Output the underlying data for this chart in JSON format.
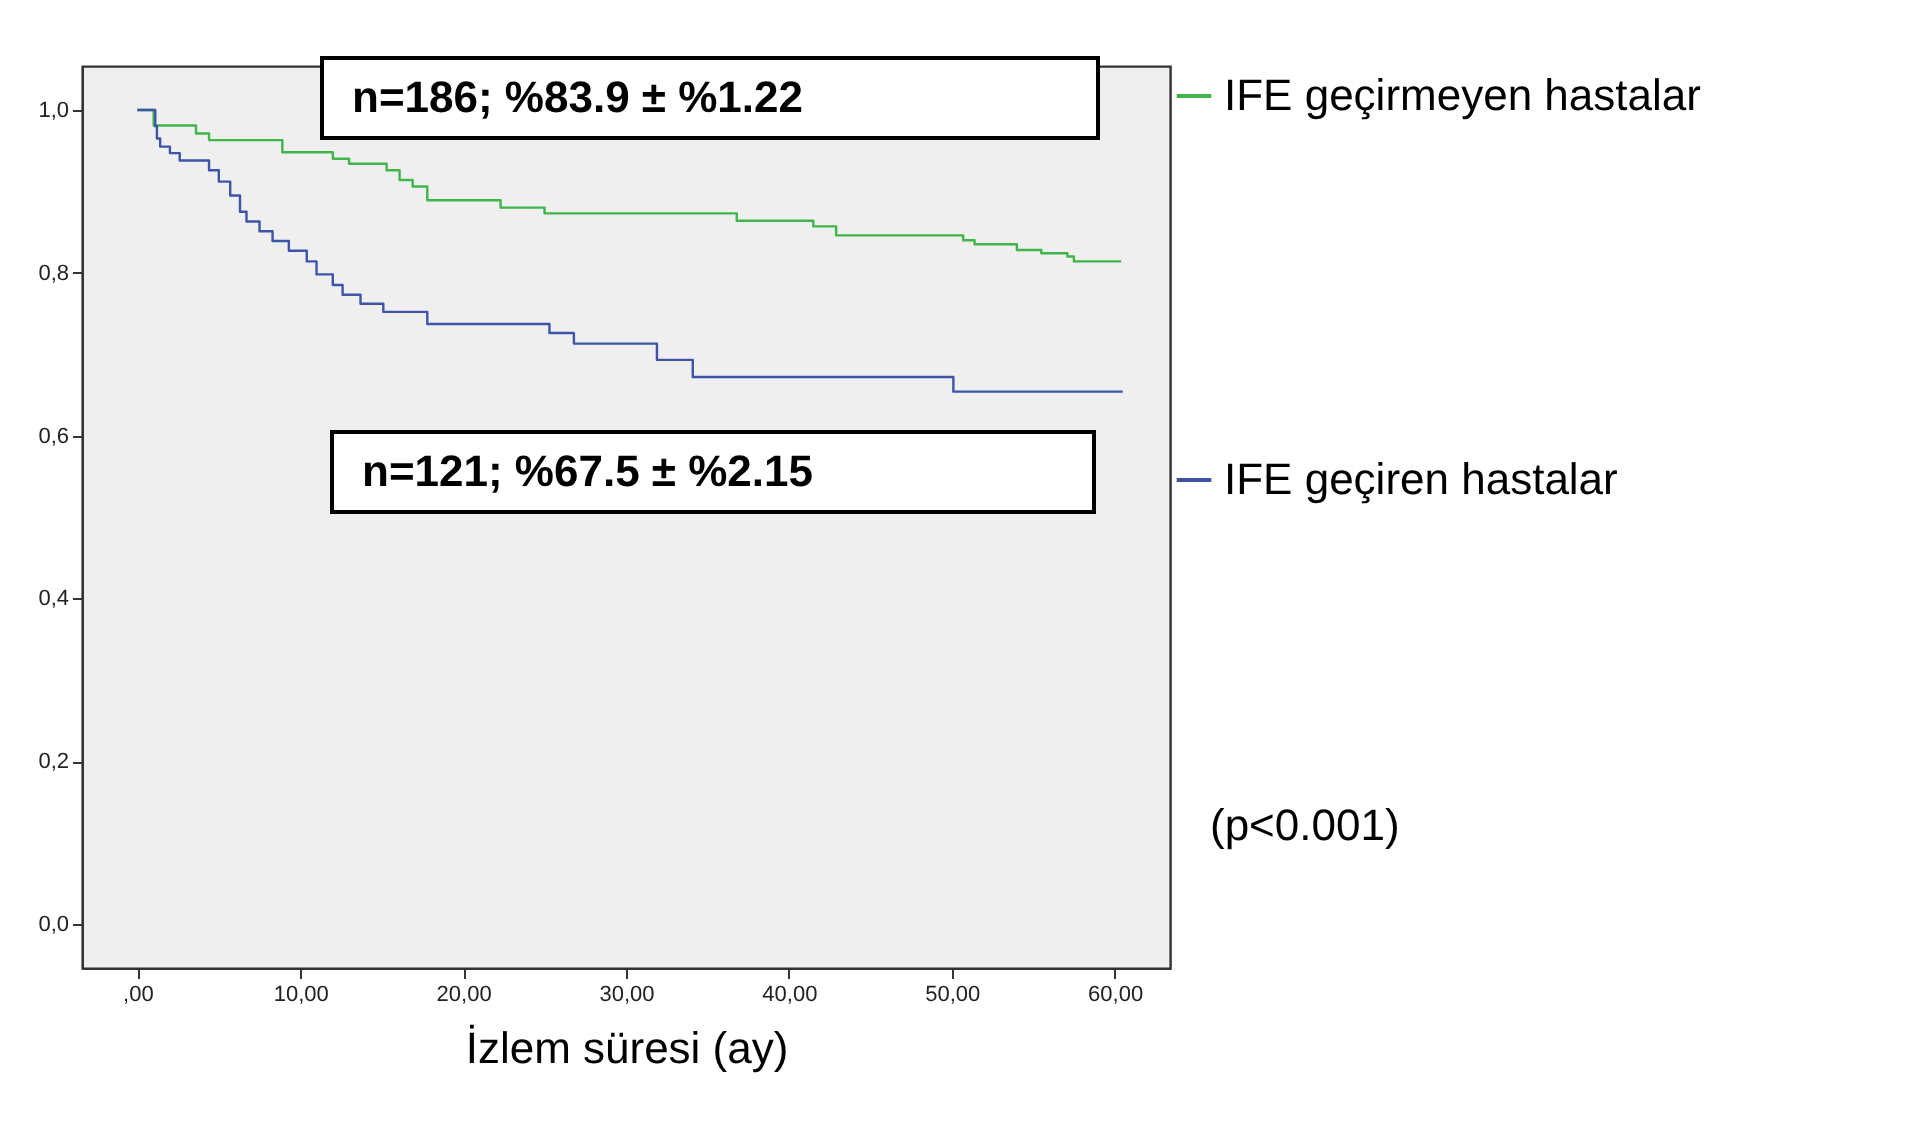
{
  "chart_data": {
    "type": "step",
    "xlabel": "İzlem süresi (ay)",
    "annotations": [
      "n=186; %83.9 ± %1.22",
      "n=121; %67.5 ± %2.15",
      "(p<0.001)"
    ],
    "xlim": [
      -3.4,
      63.4
    ],
    "ylim": [
      -0.054,
      1.054
    ],
    "xticks": [
      {
        "value": 0,
        "label": ",00"
      },
      {
        "value": 10,
        "label": "10,00"
      },
      {
        "value": 20,
        "label": "20,00"
      },
      {
        "value": 30,
        "label": "30,00"
      },
      {
        "value": 40,
        "label": "40,00"
      },
      {
        "value": 50,
        "label": "50,00"
      },
      {
        "value": 60,
        "label": "60,00"
      }
    ],
    "yticks": [
      {
        "value": 0,
        "label": "0,0"
      },
      {
        "value": 0.2,
        "label": "0,2"
      },
      {
        "value": 0.4,
        "label": "0,4"
      },
      {
        "value": 0.6,
        "label": "0,6"
      },
      {
        "value": 0.8,
        "label": "0,8"
      },
      {
        "value": 1,
        "label": "1,0"
      }
    ],
    "legend": "right",
    "grid": false,
    "line_style": "solid",
    "series": [
      {
        "name": "IFE geçirmeyen hastalar",
        "color": "#3fb54a",
        "x": [
          0,
          1,
          3.6,
          4.4,
          8.9,
          12,
          13,
          15.3,
          16.1,
          16.9,
          17.8,
          22.3,
          25,
          36.8,
          41.5,
          42.9,
          50.7,
          51.4,
          54,
          55.5,
          57.1,
          57.5,
          60.4
        ],
        "values": [
          1.0,
          0.981,
          0.971,
          0.963,
          0.948,
          0.94,
          0.934,
          0.926,
          0.914,
          0.906,
          0.889,
          0.88,
          0.873,
          0.864,
          0.857,
          0.846,
          0.84,
          0.835,
          0.828,
          0.824,
          0.82,
          0.814,
          0.814
        ]
      },
      {
        "name": "IFE geçiren hastalar",
        "color": "#3e54a8",
        "x": [
          0,
          1.1,
          1.2,
          1.4,
          2.0,
          2.6,
          4.4,
          5.0,
          5.7,
          6.3,
          6.7,
          7.5,
          8.3,
          9.3,
          10.4,
          11.0,
          12.0,
          12.6,
          13.7,
          15.1,
          17.8,
          25.3,
          26.8,
          31.9,
          34.1,
          50.1,
          60.5
        ],
        "values": [
          1.0,
          0.98,
          0.965,
          0.955,
          0.947,
          0.938,
          0.926,
          0.912,
          0.895,
          0.875,
          0.863,
          0.851,
          0.839,
          0.827,
          0.814,
          0.798,
          0.785,
          0.773,
          0.762,
          0.752,
          0.737,
          0.726,
          0.713,
          0.693,
          0.672,
          0.654,
          0.654
        ]
      }
    ]
  }
}
